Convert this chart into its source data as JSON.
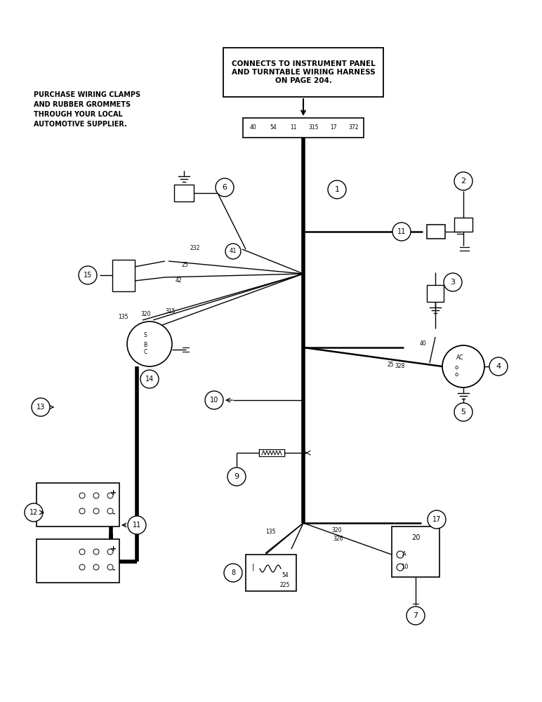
{
  "bg_color": "#ffffff",
  "line_color": "#000000",
  "thick_lw": 4.0,
  "thin_lw": 1.0,
  "med_lw": 1.8,
  "note_text": "PURCHASE WIRING CLAMPS\nAND RUBBER GROMMETS\nTHROUGH YOUR LOCAL\nAUTOMOTIVE SUPPLIER.",
  "box_text": "CONNECTS TO INSTRUMENT PANEL\nAND TURNTABLE WIRING HARNESS\nON PAGE 204.",
  "pins": [
    "40",
    "54",
    "11",
    "315",
    "17",
    "372"
  ]
}
